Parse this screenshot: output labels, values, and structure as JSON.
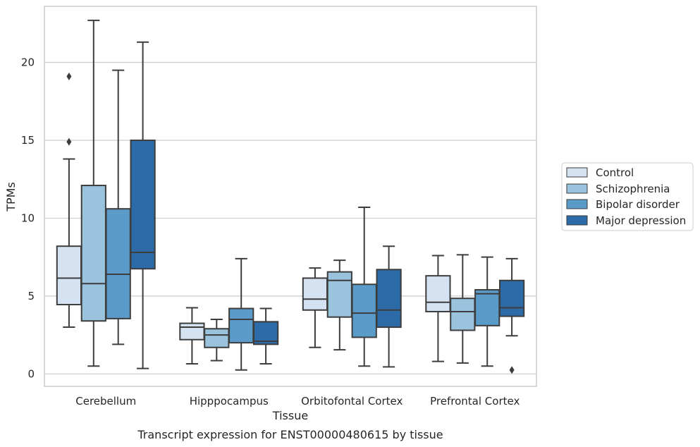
{
  "chart_data": {
    "type": "box",
    "title": "",
    "caption": "Transcript expression for ENST00000480615 by tissue",
    "xlabel": "Tissue",
    "ylabel": "TPMs",
    "ylim": [
      -0.8,
      23.6
    ],
    "yticks": [
      0,
      5,
      10,
      15,
      20
    ],
    "grid": "horizontal",
    "legend_position": "right",
    "categories": [
      "Cerebellum",
      "Hipppocampus",
      "Orbitofontal Cortex",
      "Prefrontal Cortex"
    ],
    "series": [
      {
        "name": "Control",
        "color": "#d4e2f1",
        "boxes": [
          {
            "whisker_low": 3.0,
            "q1": 4.45,
            "median": 6.15,
            "q3": 8.2,
            "whisker_high": 13.8,
            "outliers": [
              14.9,
              19.1
            ]
          },
          {
            "whisker_low": 0.65,
            "q1": 2.2,
            "median": 3.0,
            "q3": 3.25,
            "whisker_high": 4.25,
            "outliers": []
          },
          {
            "whisker_low": 1.7,
            "q1": 4.1,
            "median": 4.8,
            "q3": 6.15,
            "whisker_high": 6.8,
            "outliers": []
          },
          {
            "whisker_low": 0.8,
            "q1": 4.0,
            "median": 4.6,
            "q3": 6.3,
            "whisker_high": 7.6,
            "outliers": []
          }
        ]
      },
      {
        "name": "Schizophrenia",
        "color": "#9ac3dd",
        "boxes": [
          {
            "whisker_low": 0.5,
            "q1": 3.4,
            "median": 5.8,
            "q3": 12.1,
            "whisker_high": 22.7,
            "outliers": []
          },
          {
            "whisker_low": 0.85,
            "q1": 1.7,
            "median": 2.5,
            "q3": 2.9,
            "whisker_high": 3.5,
            "outliers": []
          },
          {
            "whisker_low": 1.55,
            "q1": 3.65,
            "median": 6.0,
            "q3": 6.55,
            "whisker_high": 7.3,
            "outliers": []
          },
          {
            "whisker_low": 0.7,
            "q1": 2.8,
            "median": 4.0,
            "q3": 4.85,
            "whisker_high": 7.65,
            "outliers": []
          }
        ]
      },
      {
        "name": "Bipolar disorder",
        "color": "#5a9bc9",
        "boxes": [
          {
            "whisker_low": 1.9,
            "q1": 3.55,
            "median": 6.4,
            "q3": 10.6,
            "whisker_high": 19.5,
            "outliers": []
          },
          {
            "whisker_low": 0.25,
            "q1": 2.0,
            "median": 3.5,
            "q3": 4.2,
            "whisker_high": 7.4,
            "outliers": []
          },
          {
            "whisker_low": 0.5,
            "q1": 2.35,
            "median": 3.9,
            "q3": 5.75,
            "whisker_high": 10.7,
            "outliers": []
          },
          {
            "whisker_low": 0.5,
            "q1": 3.1,
            "median": 5.15,
            "q3": 5.4,
            "whisker_high": 7.5,
            "outliers": []
          }
        ]
      },
      {
        "name": "Major depression",
        "color": "#2c6aa8",
        "boxes": [
          {
            "whisker_low": 0.35,
            "q1": 6.75,
            "median": 7.8,
            "q3": 15.0,
            "whisker_high": 21.3,
            "outliers": []
          },
          {
            "whisker_low": 0.65,
            "q1": 1.9,
            "median": 2.1,
            "q3": 3.35,
            "whisker_high": 4.2,
            "outliers": []
          },
          {
            "whisker_low": 0.45,
            "q1": 3.0,
            "median": 4.1,
            "q3": 6.7,
            "whisker_high": 8.2,
            "outliers": []
          },
          {
            "whisker_low": 2.45,
            "q1": 3.7,
            "median": 4.25,
            "q3": 6.0,
            "whisker_high": 7.4,
            "outliers": [
              0.25
            ]
          }
        ]
      }
    ]
  }
}
